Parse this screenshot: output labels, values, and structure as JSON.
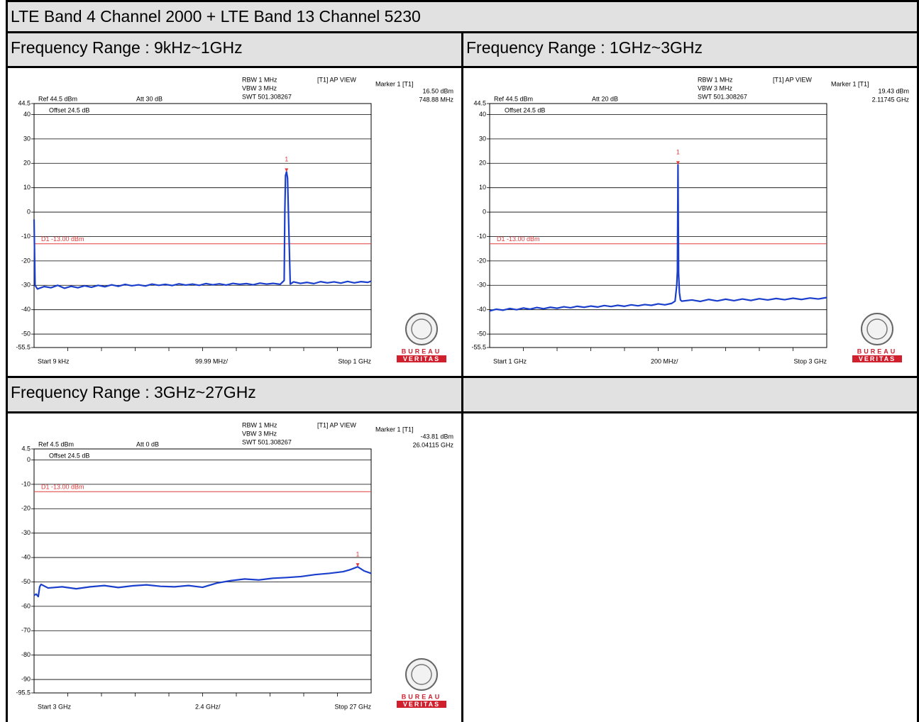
{
  "title": "LTE Band 4 Channel 2000 + LTE Band 13 Channel 5230",
  "logo": {
    "top": "BUREAU",
    "bottom": "VERITAS"
  },
  "chart_data": [
    {
      "type": "line",
      "title": "Frequency Range : 9kHz~1GHz",
      "info": {
        "rbw": "RBW 1 MHz",
        "vbw": "VBW 3 MHz",
        "swt": "SWT 501.308267",
        "view": "[T1] AP VIEW",
        "marker_title": "Marker 1 [T1]",
        "ref": "Ref 44.5 dBm",
        "att": "Att 30 dB",
        "offset": "Offset 24.5 dB",
        "start": "Start 9 kHz",
        "span": "99.99 MHz/",
        "stop": "Stop 1 GHz"
      },
      "marker": {
        "x": 748.88,
        "y": 16.5,
        "label": "1",
        "y_label": "16.50 dBm",
        "x_label": "748.88 MHz"
      },
      "limit_line": {
        "value": -13,
        "label": "D1 -13.00 dBm",
        "color": "#e03c3c"
      },
      "xlim": [
        0.009,
        1000
      ],
      "ylim": [
        -55.5,
        44.5
      ],
      "yticks": [
        44.5,
        40,
        30,
        20,
        10,
        0,
        -10,
        -20,
        -30,
        -40,
        -50,
        -55.5
      ],
      "color": "#1a3fcc",
      "x": [
        0.009,
        3,
        10,
        30,
        50,
        70,
        90,
        110,
        130,
        150,
        170,
        190,
        210,
        230,
        250,
        270,
        290,
        310,
        330,
        350,
        370,
        390,
        410,
        430,
        450,
        470,
        490,
        510,
        530,
        550,
        570,
        590,
        610,
        630,
        650,
        670,
        690,
        710,
        730,
        742,
        744,
        746,
        748.88,
        752,
        756,
        760,
        770,
        790,
        810,
        830,
        850,
        870,
        890,
        910,
        930,
        950,
        970,
        990,
        1000
      ],
      "values": [
        -3,
        -30,
        -31.5,
        -30.5,
        -31,
        -30,
        -31.2,
        -30.4,
        -31,
        -30.2,
        -30.8,
        -30,
        -30.6,
        -29.8,
        -30.4,
        -29.6,
        -30.2,
        -29.8,
        -30.3,
        -29.5,
        -30,
        -29.6,
        -30.1,
        -29.4,
        -29.9,
        -29.5,
        -30,
        -29.3,
        -29.8,
        -29.4,
        -29.9,
        -29.2,
        -29.6,
        -29.3,
        -29.8,
        -29.1,
        -29.5,
        -29.2,
        -29.6,
        -28,
        1,
        15,
        16.5,
        14,
        -8,
        -29.5,
        -28.6,
        -29.2,
        -28.8,
        -29.3,
        -28.5,
        -29,
        -28.6,
        -29.1,
        -28.4,
        -29,
        -28.5,
        -28.8,
        -28.3
      ]
    },
    {
      "type": "line",
      "title": "Frequency Range : 1GHz~3GHz",
      "info": {
        "rbw": "RBW 1 MHz",
        "vbw": "VBW 3 MHz",
        "swt": "SWT 501.308267",
        "view": "[T1] AP VIEW",
        "marker_title": "Marker 1 [T1]",
        "ref": "Ref 44.5 dBm",
        "att": "Att 20 dB",
        "offset": "Offset 24.5 dB",
        "start": "Start 1 GHz",
        "span": "200 MHz/",
        "stop": "Stop 3 GHz"
      },
      "marker": {
        "x": 2117.45,
        "y": 19.43,
        "label": "1",
        "y_label": "19.43 dBm",
        "x_label": "2.11745 GHz"
      },
      "limit_line": {
        "value": -13,
        "label": "D1 -13.00 dBm",
        "color": "#e03c3c"
      },
      "xlim": [
        1000,
        3000
      ],
      "ylim": [
        -55.5,
        44.5
      ],
      "yticks": [
        44.5,
        40,
        30,
        20,
        10,
        0,
        -10,
        -20,
        -30,
        -40,
        -50,
        -55.5
      ],
      "color": "#1a3fcc",
      "x": [
        1000,
        1040,
        1080,
        1120,
        1160,
        1200,
        1240,
        1280,
        1320,
        1360,
        1400,
        1440,
        1480,
        1520,
        1560,
        1600,
        1640,
        1680,
        1720,
        1760,
        1800,
        1840,
        1880,
        1920,
        1960,
        2000,
        2040,
        2080,
        2100,
        2110,
        2114,
        2117.45,
        2121,
        2126,
        2132,
        2140,
        2200,
        2250,
        2300,
        2350,
        2400,
        2450,
        2500,
        2550,
        2600,
        2650,
        2700,
        2750,
        2800,
        2850,
        2900,
        2950,
        3000
      ],
      "values": [
        -40.5,
        -39.8,
        -40.2,
        -39.5,
        -40,
        -39.3,
        -39.8,
        -39.1,
        -39.6,
        -39,
        -39.4,
        -38.8,
        -39.2,
        -38.6,
        -39,
        -38.5,
        -38.9,
        -38.3,
        -38.7,
        -38.2,
        -38.6,
        -38,
        -38.4,
        -37.9,
        -38.2,
        -37.6,
        -38,
        -37.4,
        -36.5,
        -30,
        -24,
        19.43,
        -25,
        -33,
        -36,
        -36.5,
        -36,
        -36.6,
        -35.8,
        -36.4,
        -35.7,
        -36.3,
        -35.6,
        -36.2,
        -35.5,
        -36,
        -35.4,
        -35.9,
        -35.3,
        -35.8,
        -35.2,
        -35.6,
        -35
      ]
    },
    {
      "type": "line",
      "title": "Frequency Range : 3GHz~27GHz",
      "info": {
        "rbw": "RBW 1 MHz",
        "vbw": "VBW 3 MHz",
        "swt": "SWT 501.308267",
        "view": "[T1] AP VIEW",
        "marker_title": "Marker 1 [T1]",
        "ref": "Ref 4.5 dBm",
        "att": "Att 0 dB",
        "offset": "Offset 24.5 dB",
        "start": "Start 3 GHz",
        "span": "2.4 GHz/",
        "stop": "Stop 27 GHz"
      },
      "marker": {
        "x": 26041.15,
        "y": -43.81,
        "label": "1",
        "y_label": "-43.81 dBm",
        "x_label": "26.04115 GHz"
      },
      "limit_line": {
        "value": -13,
        "label": "D1 -13.00 dBm",
        "color": "#e03c3c"
      },
      "xlim": [
        3000,
        27000
      ],
      "ylim": [
        -95.5,
        4.5
      ],
      "yticks": [
        4.5,
        0,
        -10,
        -20,
        -30,
        -40,
        -50,
        -60,
        -70,
        -80,
        -90,
        -95.5
      ],
      "color": "#1a3fcc",
      "x": [
        3000,
        3150,
        3300,
        3400,
        3500,
        4000,
        5000,
        6000,
        7000,
        8000,
        9000,
        10000,
        11000,
        12000,
        13000,
        14000,
        15000,
        16000,
        17000,
        18000,
        19000,
        20000,
        21000,
        22000,
        23000,
        24000,
        25000,
        25500,
        26041.15,
        26500,
        27000
      ],
      "values": [
        -55.5,
        -55,
        -56,
        -52,
        -51,
        -52.5,
        -52,
        -52.8,
        -52,
        -51.5,
        -52.3,
        -51.6,
        -51.2,
        -51.8,
        -52,
        -51.5,
        -52.2,
        -50.5,
        -49.5,
        -48.8,
        -49.2,
        -48.5,
        -48.2,
        -47.8,
        -47,
        -46.5,
        -45.8,
        -45,
        -43.81,
        -45.5,
        -46.5
      ]
    }
  ]
}
